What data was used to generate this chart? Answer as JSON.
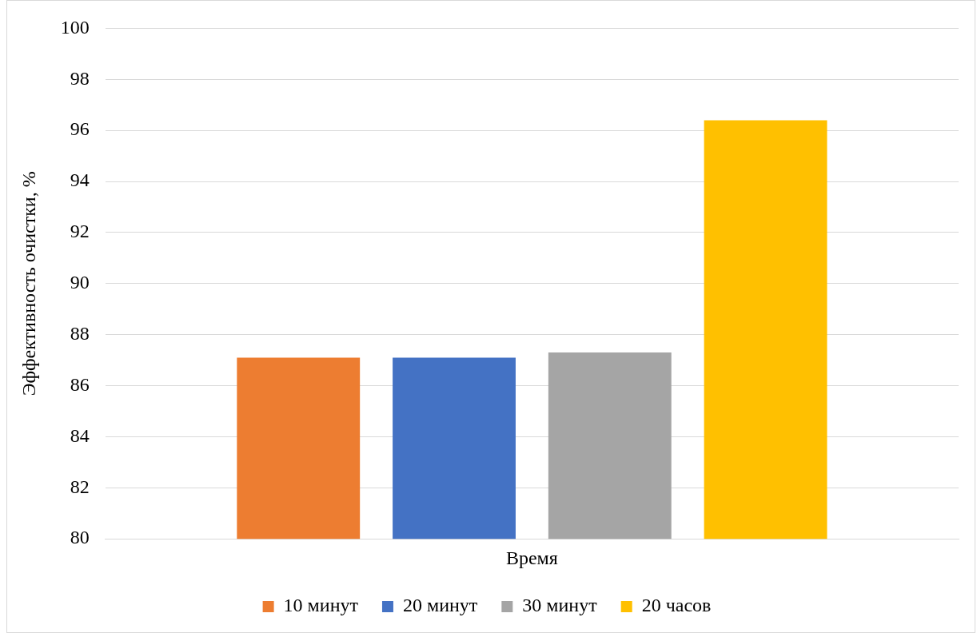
{
  "chart_data": {
    "type": "bar",
    "ylabel": "Эффективность очистки, %",
    "categories": [
      "Время"
    ],
    "series": [
      {
        "name": "10 минут",
        "color": "#ed7d31",
        "values": [
          87.1
        ]
      },
      {
        "name": "20 минут",
        "color": "#4472c4",
        "values": [
          87.1
        ]
      },
      {
        "name": "30 минут",
        "color": "#a5a5a5",
        "values": [
          87.3
        ]
      },
      {
        "name": "20 часов",
        "color": "#ffc000",
        "values": [
          96.4
        ]
      }
    ],
    "ylim": [
      80,
      100
    ],
    "yticks": [
      80,
      82,
      84,
      86,
      88,
      90,
      92,
      94,
      96,
      98,
      100
    ],
    "grid": "y",
    "legend": "bottom"
  }
}
